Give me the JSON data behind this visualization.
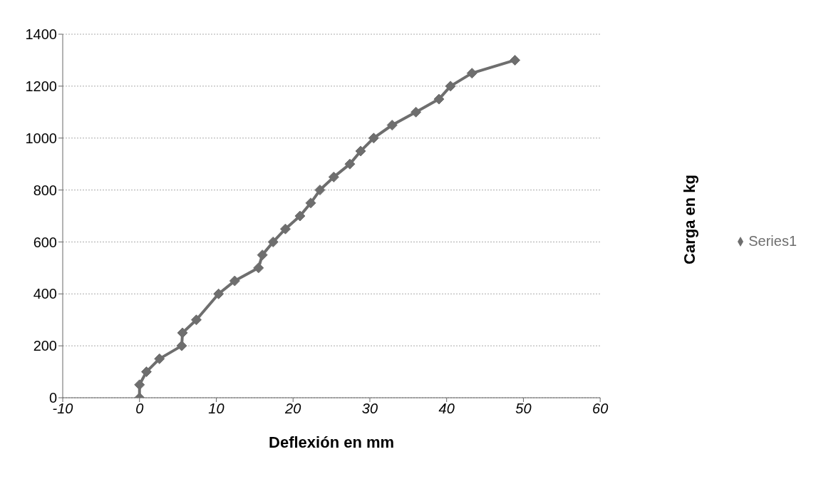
{
  "chart_data": {
    "type": "line",
    "xlabel": "Deflexión  en mm",
    "ylabel": "Carga en kg",
    "x": [
      0,
      0,
      0.9,
      2.6,
      5.5,
      5.6,
      7.4,
      10.3,
      12.4,
      15.5,
      16,
      17.4,
      19,
      20.9,
      22.3,
      23.5,
      25.3,
      27.4,
      28.8,
      30.5,
      32.9,
      36,
      39,
      40.5,
      43.3,
      48.9
    ],
    "series": [
      {
        "name": "Series1",
        "color": "#6e6e6e",
        "values": [
          0,
          50,
          100,
          150,
          200,
          250,
          300,
          400,
          450,
          500,
          550,
          600,
          650,
          700,
          750,
          800,
          850,
          900,
          950,
          1000,
          1050,
          1100,
          1150,
          1200,
          1250,
          1300
        ]
      }
    ],
    "xlim": [
      -10,
      60
    ],
    "xticks": [
      -10,
      0,
      10,
      20,
      30,
      40,
      50,
      60
    ],
    "ylim": [
      0,
      1400
    ],
    "yticks": [
      0,
      200,
      400,
      600,
      800,
      1000,
      1200,
      1400
    ],
    "grid": "y",
    "legend": "right",
    "marker": "diamond",
    "line_style": "solid"
  }
}
